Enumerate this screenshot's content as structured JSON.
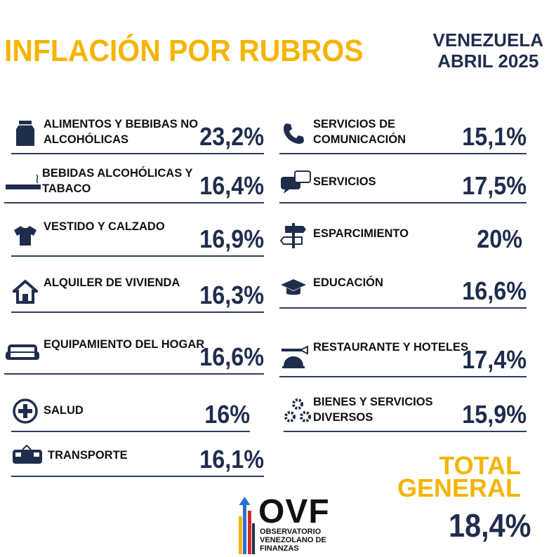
{
  "header": {
    "title": "INFLACIÓN POR  RUBROS",
    "country": "VENEZUELA",
    "period": "ABRIL 2025"
  },
  "left_items": [
    {
      "label": "ALIMENTOS Y BEBIBAS NO ALCOHÓLICAS",
      "value": "23,2%",
      "icon": "milk-carton-icon"
    },
    {
      "label": "BEBIDAS ALCOHÓLICAS Y TABACO",
      "value": "16,4%",
      "icon": "cigarette-icon"
    },
    {
      "label": "VESTIDO Y CALZADO",
      "value": "16,9%",
      "icon": "shirt-icon"
    },
    {
      "label": "ALQUILER DE VIVIENDA",
      "value": "16,3%",
      "icon": "house-icon"
    },
    {
      "label": "EQUIPAMIENTO DEL HOGAR",
      "value": "16,6%",
      "icon": "sofa-icon"
    },
    {
      "label": "SALUD",
      "value": "16%",
      "icon": "medical-cross-icon"
    },
    {
      "label": "TRANSPORTE",
      "value": "16,1%",
      "icon": "bus-icon"
    }
  ],
  "right_items": [
    {
      "label": "SERVICIOS DE COMUNICACIÓN",
      "value": "15,1%",
      "icon": "phone-icon"
    },
    {
      "label": "SERVICIOS",
      "value": "17,5%",
      "icon": "chat-bubbles-icon"
    },
    {
      "label": "ESPARCIMIENTO",
      "value": "20%",
      "icon": "signpost-icon"
    },
    {
      "label": "EDUCACIÓN",
      "value": "16,6%",
      "icon": "graduation-cap-icon"
    },
    {
      "label": "RESTAURANTE Y HOTELES",
      "value": "17,4%",
      "icon": "service-bell-icon"
    },
    {
      "label": "BIENES Y SERVICIOS DIVERSOS",
      "value": "15,9%",
      "icon": "gears-icon"
    }
  ],
  "total": {
    "label_line1": "TOTAL",
    "label_line2": "GENERAL",
    "value": "18,4%"
  },
  "logo": {
    "name": "OVF",
    "line1": "OBSERVATORIO",
    "line2": "VENEZOLANO DE",
    "line3": "FINANZAS"
  },
  "colors": {
    "accent": "#f5b400",
    "navy": "#1f2d4d"
  }
}
